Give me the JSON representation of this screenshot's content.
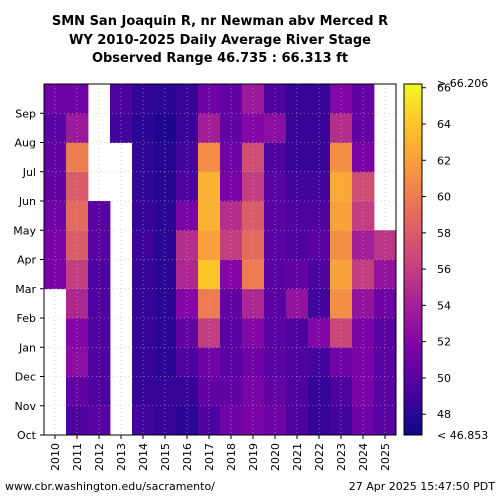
{
  "chart_data": {
    "type": "heatmap",
    "title_lines": [
      "SMN San Joaquin R, nr Newman abv Merced R",
      "WY 2010-2025 Daily Average River Stage",
      "Observed Range 46.735 : 66.313 ft"
    ],
    "x_categories": [
      "2010",
      "2011",
      "2012",
      "2013",
      "2014",
      "2015",
      "2016",
      "2017",
      "2018",
      "2019",
      "2020",
      "2021",
      "2022",
      "2023",
      "2024",
      "2025"
    ],
    "y_months": [
      "Oct",
      "Nov",
      "Dec",
      "Jan",
      "Feb",
      "Mar",
      "Apr",
      "May",
      "Jun",
      "Jul",
      "Aug",
      "Sep"
    ],
    "units": "ft",
    "colormap": "plasma",
    "color_range": [
      46.853,
      66.206
    ],
    "colorbar_ticks": [
      48,
      50,
      52,
      54,
      56,
      58,
      60,
      62,
      64,
      66
    ],
    "colorbar_min_label": "< 46.853",
    "colorbar_max_label": "> 66.206",
    "monthly_stage": {
      "2010": [
        null,
        null,
        null,
        null,
        null,
        51.5,
        51.5,
        51.0,
        50.5,
        50.5,
        50.0,
        51.0
      ],
      "2011": [
        49.5,
        50.5,
        52.5,
        52.0,
        54.5,
        56.0,
        58.0,
        59.0,
        58.0,
        60.0,
        53.5,
        51.0
      ],
      "2012": [
        50.0,
        49.5,
        49.5,
        49.5,
        49.5,
        49.5,
        50.0,
        50.0,
        null,
        null,
        null,
        null
      ],
      "2013": [
        null,
        null,
        null,
        null,
        null,
        null,
        null,
        null,
        null,
        null,
        49.0,
        49.5
      ],
      "2014": [
        49.0,
        48.5,
        48.5,
        48.5,
        48.5,
        48.5,
        48.8,
        48.5,
        48.3,
        48.3,
        48.0,
        48.3
      ],
      "2015": [
        48.5,
        48.5,
        48.0,
        48.0,
        48.0,
        48.0,
        48.0,
        48.0,
        47.8,
        47.8,
        47.5,
        48.0
      ],
      "2016": [
        48.0,
        48.5,
        49.5,
        50.5,
        52.0,
        54.5,
        55.0,
        51.5,
        49.5,
        49.0,
        48.5,
        48.5
      ],
      "2017": [
        49.5,
        50.5,
        51.0,
        56.0,
        60.0,
        64.0,
        62.0,
        63.0,
        63.0,
        61.0,
        54.0,
        51.0
      ],
      "2018": [
        51.0,
        50.5,
        50.0,
        50.0,
        50.5,
        52.0,
        56.0,
        55.0,
        51.5,
        51.0,
        50.5,
        50.5
      ],
      "2019": [
        51.5,
        51.5,
        51.0,
        52.0,
        54.5,
        60.0,
        59.0,
        58.0,
        56.0,
        57.0,
        52.0,
        53.5
      ],
      "2020": [
        51.0,
        50.5,
        50.0,
        50.0,
        50.0,
        50.0,
        50.0,
        50.0,
        50.0,
        49.5,
        52.5,
        49.5
      ],
      "2021": [
        49.5,
        49.5,
        49.5,
        49.5,
        53.0,
        50.5,
        49.5,
        49.5,
        49.0,
        48.5,
        48.5,
        48.5
      ],
      "2022": [
        48.5,
        48.5,
        49.0,
        52.0,
        49.0,
        49.5,
        50.0,
        49.5,
        49.0,
        48.5,
        48.5,
        48.5
      ],
      "2023": [
        49.0,
        49.5,
        51.0,
        56.5,
        61.0,
        62.0,
        61.0,
        62.0,
        62.5,
        61.0,
        55.0,
        52.0
      ],
      "2024": [
        51.0,
        51.5,
        51.5,
        51.5,
        53.0,
        56.0,
        54.0,
        56.0,
        57.0,
        51.5,
        50.5,
        50.5
      ],
      "2025": [
        50.0,
        50.0,
        50.0,
        50.0,
        51.0,
        53.0,
        55.5,
        null,
        null,
        null,
        null,
        null
      ]
    },
    "grid": true
  },
  "footer": {
    "url": "www.cbr.washington.edu/sacramento/",
    "timestamp": "27 Apr 2025 15:47:50 PDT"
  }
}
